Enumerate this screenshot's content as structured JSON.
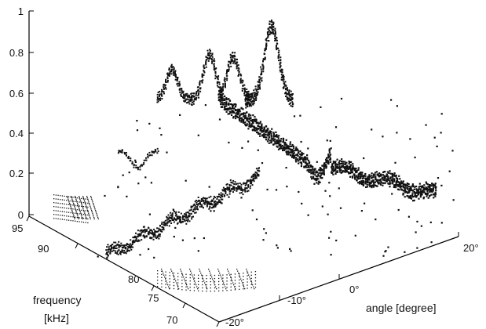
{
  "chart_data": {
    "type": "scatter",
    "subtype": "3d-surface-points",
    "title": "",
    "z_axis": {
      "ticks": [
        "0",
        "0.2",
        "0.4",
        "0.6",
        "0.8",
        "1"
      ],
      "range": [
        0,
        1
      ]
    },
    "frequency_axis": {
      "label_line1": "frequency",
      "label_line2": "[kHz]",
      "ticks": [
        "95",
        "90",
        "80",
        "75",
        "70"
      ],
      "range": [
        70,
        95
      ]
    },
    "angle_axis": {
      "label": "angle [degree]",
      "ticks": [
        "-20°",
        "-10°",
        "0°",
        "20°"
      ],
      "range": [
        -20,
        20
      ]
    },
    "grid": false,
    "colors": {
      "points": "#111111",
      "axes": "#000000"
    }
  }
}
